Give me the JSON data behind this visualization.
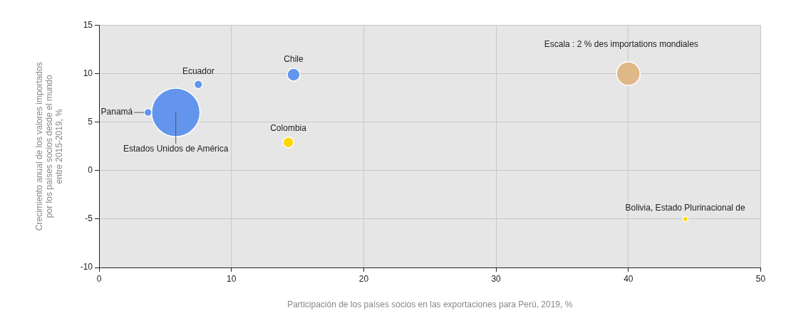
{
  "chart_data": {
    "type": "bubble",
    "xlabel": "Participación de los países socios en las exportaciones para Perú, 2019, %",
    "ylabel": "Crecimiento anual de los valores importados\npor los países socios desde el mundo\nentre 2015-2019, %",
    "series": [
      {
        "x": [
          3.7,
          5.8,
          7.5,
          14.7,
          14.3,
          44.3
        ],
        "values": [
          6,
          6,
          8.9,
          9.9,
          2.9,
          -5
        ],
        "sizes": [
          0.026,
          1,
          0.03,
          0.07,
          0.048,
          0.011
        ],
        "colors": [
          "#6495ed",
          "#6495ed",
          "#6495ed",
          "#6495ed",
          "#ffd700",
          "#ffd700"
        ]
      },
      {
        "name": "Escala : 2 % des importations mondiales",
        "color": "#deb887",
        "x": [
          40
        ],
        "values": [
          10
        ],
        "sizes": [
          0.235
        ]
      }
    ],
    "annotations": [
      {
        "text": "Panamá",
        "x": 3.7,
        "y": 6
      },
      {
        "text": "Estados Unidos de América",
        "x": 5.8,
        "y": 6
      },
      {
        "text": "Ecuador",
        "x": 7.5,
        "y": 8.9
      },
      {
        "text": "Chile",
        "x": 14.7,
        "y": 9.9
      },
      {
        "text": "Colombia",
        "x": 14.3,
        "y": 2.9
      },
      {
        "text": "Bolivia, Estado Plurinacional de",
        "x": 44.3,
        "y": -5
      }
    ],
    "xlim": [
      0,
      50
    ],
    "xticks": [
      0,
      10,
      20,
      30,
      40,
      50
    ],
    "ylim": [
      -10,
      15
    ],
    "yticks": [
      -10,
      -5,
      0,
      5,
      10,
      15
    ],
    "grid": true
  }
}
